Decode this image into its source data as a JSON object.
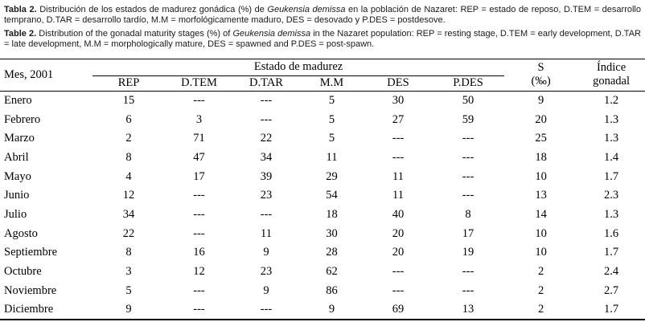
{
  "page": {
    "background": "#ffffff",
    "text_color": "#000000"
  },
  "caption_es": {
    "label": "Tabla 2.",
    "before_species": "Distribución de los estados de madurez gonádica (%) de",
    "species": "Geukensia demissa",
    "after_species": "en la población de Nazaret: REP = estado de reposo, D.TEM = desarrollo temprano, D.TAR = desarrollo tardío, M.M = morfológicamente maduro, DES = desovado y P.DES = postdesove."
  },
  "caption_en": {
    "label": "Table 2.",
    "before_species": "Distribution of the gonadal maturity stages (%) of",
    "species": "Geukensia demissa",
    "after_species": "in the Nazaret population: REP = resting stage, D.TEM = early development, D.TAR = late development, M.M = morphologically mature, DES = spawned and P.DES = post-spawn."
  },
  "table": {
    "month_column_header": "Mes, 2001",
    "group_header": "Estado de madurez",
    "stage_headers": [
      "REP",
      "D.TEM",
      "D.TAR",
      "M.M",
      "DES",
      "P.DES"
    ],
    "salinity_header_line1": "S",
    "salinity_header_line2": "(‰)",
    "index_header_line1": "Índice",
    "index_header_line2": "gonadal",
    "no_data_marker": "---",
    "rows": [
      {
        "month": "Enero",
        "values": [
          "15",
          "---",
          "---",
          "5",
          "30",
          "50",
          "9",
          "1.2"
        ]
      },
      {
        "month": "Febrero",
        "values": [
          "6",
          "3",
          "---",
          "5",
          "27",
          "59",
          "20",
          "1.3"
        ]
      },
      {
        "month": "Marzo",
        "values": [
          "2",
          "71",
          "22",
          "5",
          "---",
          "---",
          "25",
          "1.3"
        ]
      },
      {
        "month": "Abril",
        "values": [
          "8",
          "47",
          "34",
          "11",
          "---",
          "---",
          "18",
          "1.4"
        ]
      },
      {
        "month": "Mayo",
        "values": [
          "4",
          "17",
          "39",
          "29",
          "11",
          "---",
          "10",
          "1.7"
        ]
      },
      {
        "month": "Junio",
        "values": [
          "12",
          "---",
          "23",
          "54",
          "11",
          "---",
          "13",
          "2.3"
        ]
      },
      {
        "month": "Julio",
        "values": [
          "34",
          "---",
          "---",
          "18",
          "40",
          "8",
          "14",
          "1.3"
        ]
      },
      {
        "month": "Agosto",
        "values": [
          "22",
          "---",
          "11",
          "30",
          "20",
          "17",
          "10",
          "1.6"
        ]
      },
      {
        "month": "Septiembre",
        "values": [
          "8",
          "16",
          "9",
          "28",
          "20",
          "19",
          "10",
          "1.7"
        ]
      },
      {
        "month": "Octubre",
        "values": [
          "3",
          "12",
          "23",
          "62",
          "---",
          "---",
          "2",
          "2.4"
        ]
      },
      {
        "month": "Noviembre",
        "values": [
          "5",
          "---",
          "9",
          "86",
          "---",
          "---",
          "2",
          "2.7"
        ]
      },
      {
        "month": "Diciembre",
        "values": [
          "9",
          "---",
          "---",
          "9",
          "69",
          "13",
          "2",
          "1.7"
        ]
      }
    ]
  }
}
